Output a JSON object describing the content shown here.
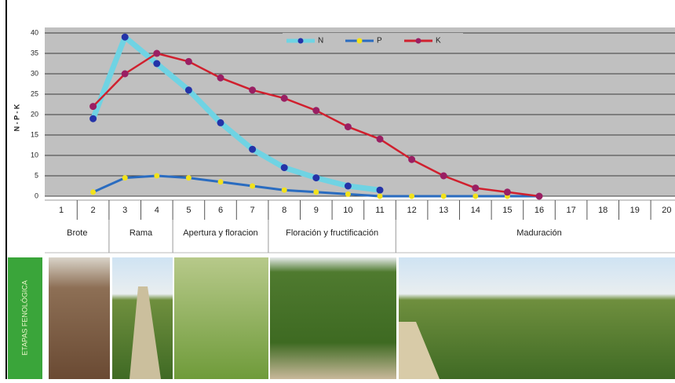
{
  "chart_data": {
    "type": "line",
    "ylabel": "N - P - K",
    "categories": [
      "1",
      "2",
      "3",
      "4",
      "5",
      "6",
      "7",
      "8",
      "9",
      "10",
      "11",
      "12",
      "13",
      "14",
      "15",
      "16",
      "17",
      "18",
      "19",
      "20"
    ],
    "series": [
      {
        "name": "N",
        "color": "#6fd3e3",
        "marker_color": "#2433a8",
        "values": [
          null,
          19,
          39,
          32.5,
          26,
          18,
          11.5,
          7,
          4.5,
          2.5,
          1.5,
          null,
          null,
          null,
          null,
          null,
          null,
          null,
          null,
          null
        ]
      },
      {
        "name": "P",
        "color": "#2a6cc0",
        "marker_color": "#f2e21c",
        "values": [
          null,
          1,
          4.5,
          5,
          4.5,
          3.5,
          2.5,
          1.5,
          1,
          0.5,
          0,
          0,
          0,
          0,
          0,
          0,
          null,
          null,
          null,
          null
        ]
      },
      {
        "name": "K",
        "color": "#d0202e",
        "marker_color": "#9a1f63",
        "values": [
          null,
          22,
          30,
          35,
          33,
          29,
          26,
          24,
          21,
          17,
          14,
          9,
          5,
          2,
          1,
          0,
          null,
          null,
          null,
          null
        ]
      }
    ],
    "ylim": [
      0,
      40
    ],
    "yticks": [
      0,
      5,
      10,
      15,
      20,
      25,
      30,
      35,
      40
    ],
    "grid": true,
    "legend": "top",
    "stages": [
      "Brote",
      "Rama",
      "Apertura y floracion",
      "Floración y fructificación",
      "Maduración"
    ],
    "stage_title": "ETAPAS FENOLÓGICA"
  }
}
